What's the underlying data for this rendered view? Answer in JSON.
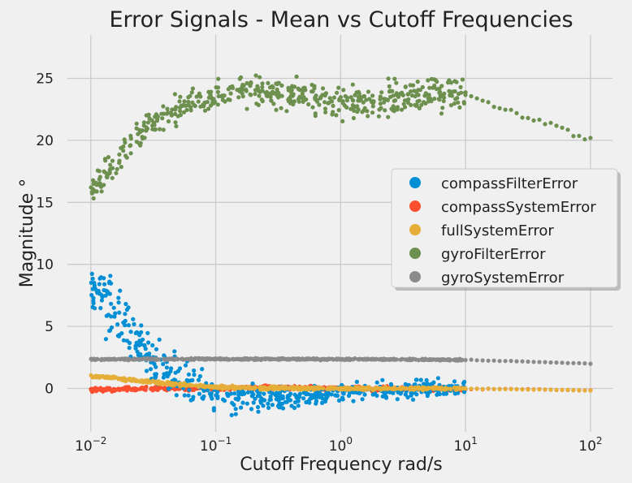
{
  "chart_data": {
    "type": "scatter",
    "title": "Error Signals - Mean vs Cutoff Frequencies",
    "xlabel": "Cutoff Frequency rad/s",
    "ylabel": "Magnitude °",
    "x_scale": "log",
    "xlim": [
      0.0065,
      150
    ],
    "ylim": [
      -3.5,
      28.5
    ],
    "x_ticks": [
      {
        "value": 0.01,
        "base": "10",
        "exp": "−2"
      },
      {
        "value": 0.1,
        "base": "10",
        "exp": "−1"
      },
      {
        "value": 1,
        "base": "10",
        "exp": "0"
      },
      {
        "value": 10,
        "base": "10",
        "exp": "1"
      },
      {
        "value": 100,
        "base": "10",
        "exp": "2"
      }
    ],
    "y_ticks": [
      0,
      5,
      10,
      15,
      20,
      25
    ],
    "grid": true,
    "legend_position": "right",
    "series": [
      {
        "name": "compassFilterError",
        "color": "#008fd5",
        "points": [
          [
            0.01,
            8.5
          ],
          [
            0.012,
            7.6
          ],
          [
            0.015,
            6.3
          ],
          [
            0.02,
            4.7
          ],
          [
            0.025,
            3.4
          ],
          [
            0.03,
            2.4
          ],
          [
            0.04,
            1.5
          ],
          [
            0.05,
            0.8
          ],
          [
            0.07,
            0.2
          ],
          [
            0.1,
            -0.4
          ],
          [
            0.15,
            -0.8
          ],
          [
            0.2,
            -0.9
          ],
          [
            0.3,
            -1.0
          ],
          [
            0.5,
            -0.7
          ],
          [
            0.7,
            -0.5
          ],
          [
            1.0,
            -0.3
          ],
          [
            1.5,
            -0.2
          ],
          [
            2,
            -0.1
          ],
          [
            3,
            -0.1
          ],
          [
            5,
            0.0
          ],
          [
            7,
            0.0
          ],
          [
            10,
            0.0
          ]
        ]
      },
      {
        "name": "compassSystemError",
        "color": "#fc4f30",
        "points": [
          [
            0.01,
            -0.1
          ],
          [
            0.02,
            -0.05
          ],
          [
            0.05,
            0.0
          ],
          [
            0.1,
            0.0
          ],
          [
            0.2,
            0.05
          ],
          [
            0.5,
            0.05
          ],
          [
            1,
            0.0
          ],
          [
            2,
            0.0
          ],
          [
            5,
            0.0
          ],
          [
            10,
            -0.05
          ],
          [
            20,
            -0.05
          ],
          [
            50,
            -0.1
          ],
          [
            100,
            -0.15
          ]
        ]
      },
      {
        "name": "fullSystemError",
        "color": "#e5ae38",
        "points": [
          [
            0.01,
            1.0
          ],
          [
            0.015,
            0.85
          ],
          [
            0.02,
            0.7
          ],
          [
            0.03,
            0.5
          ],
          [
            0.05,
            0.32
          ],
          [
            0.07,
            0.22
          ],
          [
            0.1,
            0.12
          ],
          [
            0.2,
            0.05
          ],
          [
            0.5,
            0.02
          ],
          [
            1,
            0.0
          ],
          [
            2,
            0.0
          ],
          [
            5,
            0.0
          ],
          [
            10,
            -0.02
          ],
          [
            20,
            -0.05
          ],
          [
            50,
            -0.1
          ],
          [
            100,
            -0.15
          ]
        ]
      },
      {
        "name": "gyroFilterError",
        "color": "#6d904f",
        "points": [
          [
            0.01,
            15.8
          ],
          [
            0.012,
            16.8
          ],
          [
            0.015,
            17.9
          ],
          [
            0.02,
            19.5
          ],
          [
            0.025,
            20.5
          ],
          [
            0.03,
            21.3
          ],
          [
            0.04,
            22.1
          ],
          [
            0.05,
            22.6
          ],
          [
            0.07,
            23.1
          ],
          [
            0.1,
            23.6
          ],
          [
            0.15,
            23.9
          ],
          [
            0.2,
            24.0
          ],
          [
            0.3,
            23.8
          ],
          [
            0.5,
            23.6
          ],
          [
            0.7,
            23.4
          ],
          [
            1.0,
            23.2
          ],
          [
            1.5,
            23.0
          ],
          [
            2,
            23.1
          ],
          [
            3,
            23.5
          ],
          [
            5,
            23.8
          ],
          [
            7,
            24.0
          ],
          [
            10,
            23.7
          ],
          [
            15,
            23.0
          ],
          [
            20,
            22.5
          ],
          [
            30,
            21.9
          ],
          [
            50,
            21.2
          ],
          [
            70,
            20.6
          ],
          [
            100,
            20.1
          ]
        ]
      },
      {
        "name": "gyroSystemError",
        "color": "#8b8b8b",
        "points": [
          [
            0.01,
            2.35
          ],
          [
            0.03,
            2.36
          ],
          [
            0.1,
            2.37
          ],
          [
            0.3,
            2.37
          ],
          [
            1,
            2.36
          ],
          [
            3,
            2.35
          ],
          [
            10,
            2.3
          ],
          [
            20,
            2.22
          ],
          [
            50,
            2.1
          ],
          [
            100,
            2.0
          ]
        ]
      }
    ]
  }
}
